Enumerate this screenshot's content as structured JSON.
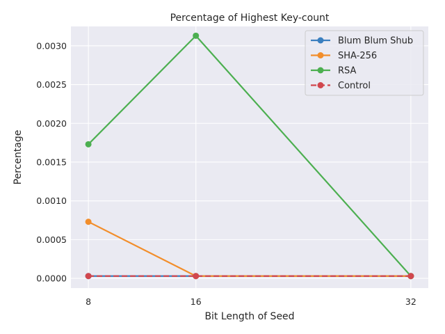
{
  "chart_data": {
    "type": "line",
    "title": "Percentage of Highest Key-count",
    "xlabel": "Bit Length of Seed",
    "ylabel": "Percentage",
    "x": [
      8,
      16,
      32
    ],
    "x_ticks": [
      "8",
      "16",
      "32"
    ],
    "xlim": [
      6.7,
      33.3
    ],
    "ylim": [
      -0.000125,
      0.00325
    ],
    "y_ticks": [
      "0.0000",
      "0.0005",
      "0.0010",
      "0.0015",
      "0.0020",
      "0.0025",
      "0.0030"
    ],
    "y_tick_values": [
      0,
      0.0005,
      0.001,
      0.0015,
      0.002,
      0.0025,
      0.003
    ],
    "grid": true,
    "legend_position": "top-right",
    "series": [
      {
        "name": "Blum Blum Shub",
        "values": [
          3e-05,
          3e-05,
          3e-05
        ],
        "color": "#3a7fbf",
        "dash": false
      },
      {
        "name": "SHA-256",
        "values": [
          0.00073,
          3e-05,
          3e-05
        ],
        "color": "#f28e2b",
        "dash": false
      },
      {
        "name": "RSA",
        "values": [
          0.00173,
          0.00313,
          3e-05
        ],
        "color": "#4caf50",
        "dash": false
      },
      {
        "name": "Control",
        "values": [
          3e-05,
          3e-05,
          3e-05
        ],
        "color": "#d1474e",
        "dash": true
      }
    ],
    "background": "#eaeaf2",
    "grid_color": "#ffffff"
  }
}
